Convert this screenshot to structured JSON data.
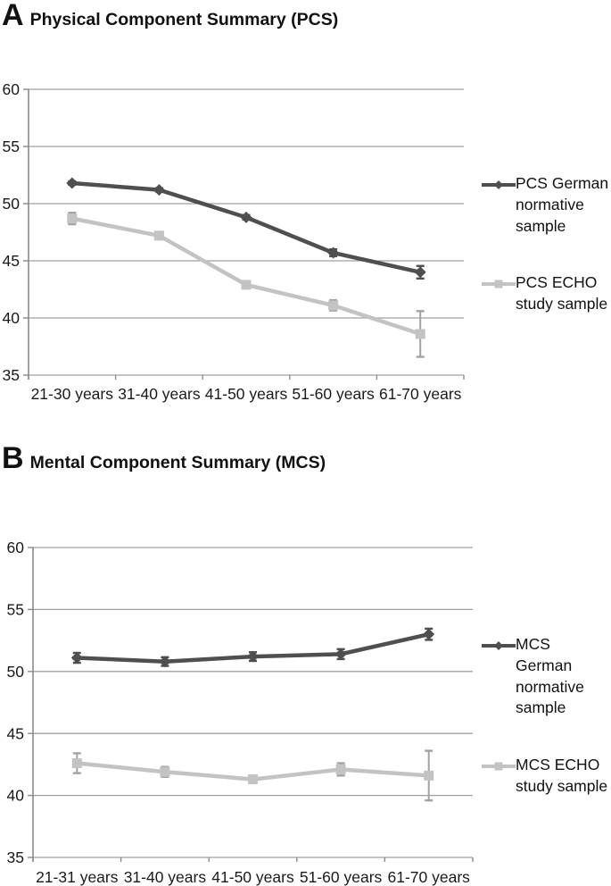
{
  "figure": {
    "background": "#ffffff",
    "text_color": "#1a1a1a",
    "grid_color": "#a0a0a0",
    "axis_color": "#8a8a8a"
  },
  "panels": [
    {
      "panel_letter": "A",
      "title": "Physical Component Summary (PCS)",
      "legend": [
        {
          "label": "PCS German normative sample"
        },
        {
          "label": "PCS ECHO study sample"
        }
      ],
      "chart_data": {
        "type": "line",
        "categories": [
          "21-30 years",
          "31-40 years",
          "41-50 years",
          "51-60 years",
          "61-70 years"
        ],
        "y_ticks": [
          60,
          55,
          50,
          45,
          40,
          35
        ],
        "ylim": [
          35,
          60
        ],
        "grid": true,
        "legend_position": "right",
        "series": [
          {
            "name": "PCS German normative sample",
            "marker": "diamond",
            "color": "#4f4f4f",
            "error_color": "#4f4f4f",
            "values": [
              51.8,
              51.2,
              48.8,
              45.7,
              44.0
            ],
            "errors": [
              0.15,
              0.15,
              0.2,
              0.3,
              0.55
            ]
          },
          {
            "name": "PCS ECHO study sample",
            "marker": "square",
            "color": "#c3c3c3",
            "error_color": "#a2a2a2",
            "values": [
              48.7,
              47.2,
              42.9,
              41.1,
              38.6
            ],
            "errors": [
              0.5,
              0.25,
              0.3,
              0.45,
              2.0
            ]
          }
        ]
      }
    },
    {
      "panel_letter": "B",
      "title": "Mental Component Summary (MCS)",
      "legend": [
        {
          "label": "MCS German normative sample"
        },
        {
          "label": "MCS ECHO study sample"
        }
      ],
      "chart_data": {
        "type": "line",
        "categories": [
          "21-31 years",
          "31-40 years",
          "41-50 years",
          "51-60 years",
          "61-70 years"
        ],
        "y_ticks": [
          60,
          55,
          50,
          45,
          40,
          35
        ],
        "ylim": [
          35,
          60
        ],
        "grid": true,
        "legend_position": "right",
        "series": [
          {
            "name": "MCS German normative sample",
            "marker": "diamond",
            "color": "#4f4f4f",
            "error_color": "#4f4f4f",
            "values": [
              51.1,
              50.8,
              51.2,
              51.4,
              53.0
            ],
            "errors": [
              0.4,
              0.35,
              0.35,
              0.4,
              0.45
            ]
          },
          {
            "name": "MCS ECHO study sample",
            "marker": "square",
            "color": "#c3c3c3",
            "error_color": "#a2a2a2",
            "values": [
              42.6,
              41.9,
              41.3,
              42.1,
              41.6
            ],
            "errors": [
              0.8,
              0.4,
              0.3,
              0.5,
              2.0
            ]
          }
        ]
      }
    }
  ]
}
